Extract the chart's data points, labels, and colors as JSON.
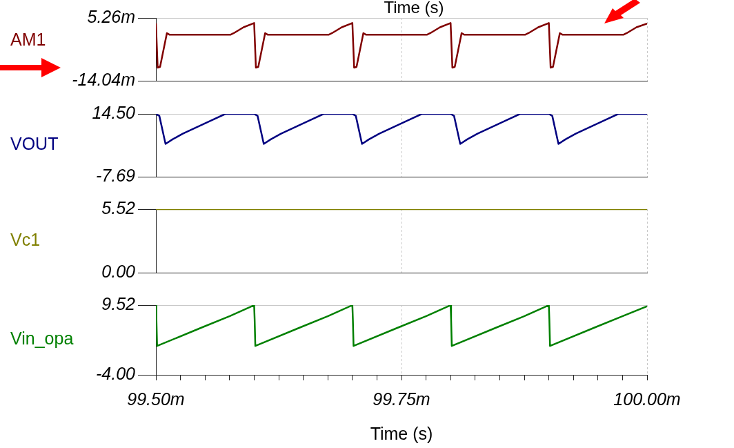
{
  "chart_data": [
    {
      "type": "line",
      "annotations": [
        "Time (s)"
      ],
      "legend": "left",
      "grid": true,
      "tick_labels": "y",
      "xlim": [
        99.5,
        100
      ],
      "xticks": [
        {
          "value": 99.5,
          "label": null
        },
        {
          "value": 99.75,
          "label": null
        },
        {
          "value": 100,
          "label": null
        }
      ],
      "ylim": [
        -14.04,
        5.26
      ],
      "yticks": [
        {
          "value": 5.26,
          "label": "5.26m"
        },
        {
          "value": -14.04,
          "label": "-14.04m"
        }
      ],
      "series": [
        {
          "name": "AM1",
          "color": "#800000",
          "x": [
            99.5,
            99.5018,
            99.5042,
            99.5112,
            99.514,
            99.5758,
            99.5793,
            99.5892,
            99.5983,
            99.6,
            99.6018,
            99.6042,
            99.6112,
            99.614,
            99.6758,
            99.6793,
            99.6892,
            99.6983,
            99.7,
            99.7018,
            99.7042,
            99.7112,
            99.714,
            99.7758,
            99.7793,
            99.7892,
            99.7983,
            99.8,
            99.8018,
            99.8042,
            99.8112,
            99.814,
            99.8758,
            99.8793,
            99.8892,
            99.8983,
            99.9,
            99.9018,
            99.9042,
            99.9112,
            99.914,
            99.9758,
            99.9793,
            99.9892,
            100
          ],
          "values": [
            3.6,
            -10,
            -9.8,
            0.6,
            0.1,
            0.1,
            0.6,
            2.4,
            3.5,
            3.7,
            -10,
            -9.8,
            0.6,
            0.1,
            0.1,
            0.6,
            2.4,
            3.5,
            3.7,
            -10,
            -9.8,
            0.6,
            0.1,
            0.1,
            0.6,
            2.4,
            3.5,
            3.7,
            -10,
            -9.8,
            0.6,
            0.1,
            0.1,
            0.6,
            2.4,
            3.5,
            3.7,
            -10,
            -9.8,
            0.6,
            0.1,
            0.1,
            0.6,
            2.4,
            3.5
          ]
        }
      ]
    },
    {
      "type": "line",
      "legend": "left",
      "grid": true,
      "tick_labels": "y",
      "xlim": [
        99.5,
        100
      ],
      "xticks": [
        {
          "value": 99.5,
          "label": null
        },
        {
          "value": 99.75,
          "label": null
        },
        {
          "value": 100,
          "label": null
        }
      ],
      "ylim": [
        -7.69,
        14.5
      ],
      "yticks": [
        {
          "value": 14.5,
          "label": "14.50"
        },
        {
          "value": -7.69,
          "label": "-7.69"
        }
      ],
      "series": [
        {
          "name": "VOUT",
          "color": "#000080",
          "x": [
            99.5,
            99.5035,
            99.5098,
            99.5169,
            99.5274,
            99.5569,
            99.5707,
            99.6,
            99.6035,
            99.6098,
            99.6169,
            99.6274,
            99.6569,
            99.6707,
            99.7,
            99.7035,
            99.7098,
            99.7169,
            99.7274,
            99.7569,
            99.7707,
            99.8,
            99.8035,
            99.8098,
            99.8169,
            99.8274,
            99.8569,
            99.8707,
            99.9,
            99.9035,
            99.9098,
            99.9169,
            99.9274,
            99.9569,
            99.9707,
            100
          ],
          "values": [
            14.5,
            13.8,
            3.9,
            5.5,
            7.5,
            12.3,
            14.5,
            14.5,
            13.8,
            3.9,
            5.5,
            7.5,
            12.3,
            14.5,
            14.5,
            13.8,
            3.9,
            5.5,
            7.5,
            12.3,
            14.5,
            14.5,
            13.8,
            3.9,
            5.5,
            7.5,
            12.3,
            14.5,
            14.5,
            13.8,
            3.9,
            5.5,
            7.5,
            12.3,
            14.5,
            14.5
          ]
        }
      ]
    },
    {
      "type": "line",
      "legend": "left",
      "grid": true,
      "tick_labels": "y",
      "xlim": [
        99.5,
        100
      ],
      "xticks": [
        {
          "value": 99.5,
          "label": null
        },
        {
          "value": 99.75,
          "label": null
        },
        {
          "value": 100,
          "label": null
        }
      ],
      "ylim": [
        0,
        5.52
      ],
      "yticks": [
        {
          "value": 5.52,
          "label": "5.52"
        },
        {
          "value": 0,
          "label": "0.00"
        }
      ],
      "series": [
        {
          "name": "Vc1",
          "color": "#808000",
          "x": [
            99.5,
            100
          ],
          "values": [
            5.52,
            5.52
          ]
        }
      ]
    },
    {
      "type": "line",
      "legend": "left",
      "grid": true,
      "xlabel": "Time (s)",
      "xlim": [
        99.5,
        100
      ],
      "xticks": [
        {
          "value": 99.5,
          "label": "99.50m"
        },
        {
          "value": 99.525,
          "label": null
        },
        {
          "value": 99.55,
          "label": null
        },
        {
          "value": 99.575,
          "label": null
        },
        {
          "value": 99.6,
          "label": null
        },
        {
          "value": 99.625,
          "label": null
        },
        {
          "value": 99.65,
          "label": null
        },
        {
          "value": 99.675,
          "label": null
        },
        {
          "value": 99.7,
          "label": null
        },
        {
          "value": 99.725,
          "label": null
        },
        {
          "value": 99.75,
          "label": "99.75m"
        },
        {
          "value": 99.775,
          "label": null
        },
        {
          "value": 99.8,
          "label": null
        },
        {
          "value": 99.825,
          "label": null
        },
        {
          "value": 99.85,
          "label": null
        },
        {
          "value": 99.875,
          "label": null
        },
        {
          "value": 99.9,
          "label": null
        },
        {
          "value": 99.925,
          "label": null
        },
        {
          "value": 99.95,
          "label": null
        },
        {
          "value": 99.975,
          "label": null
        },
        {
          "value": 100,
          "label": "100.00m"
        }
      ],
      "ylim": [
        -4,
        9.52
      ],
      "yticks": [
        {
          "value": 9.52,
          "label": "9.52"
        },
        {
          "value": -4,
          "label": "-4.00"
        }
      ],
      "series": [
        {
          "name": "Vin_opa",
          "color": "#008000",
          "x": [
            99.5,
            99.5005,
            99.5012,
            99.547,
            99.5753,
            99.6,
            99.6005,
            99.6012,
            99.647,
            99.6753,
            99.7,
            99.7005,
            99.7012,
            99.747,
            99.7753,
            99.8,
            99.8005,
            99.8012,
            99.847,
            99.8753,
            99.9,
            99.9005,
            99.9012,
            99.947,
            99.9753,
            100
          ],
          "values": [
            9.5,
            6.8,
            1.6,
            5.2,
            7.4,
            9.5,
            6.8,
            1.6,
            5.2,
            7.4,
            9.5,
            6.8,
            1.6,
            5.2,
            7.4,
            9.5,
            6.8,
            1.6,
            5.2,
            7.4,
            9.5,
            6.8,
            1.6,
            5.2,
            7.4,
            9.3
          ]
        }
      ]
    }
  ]
}
